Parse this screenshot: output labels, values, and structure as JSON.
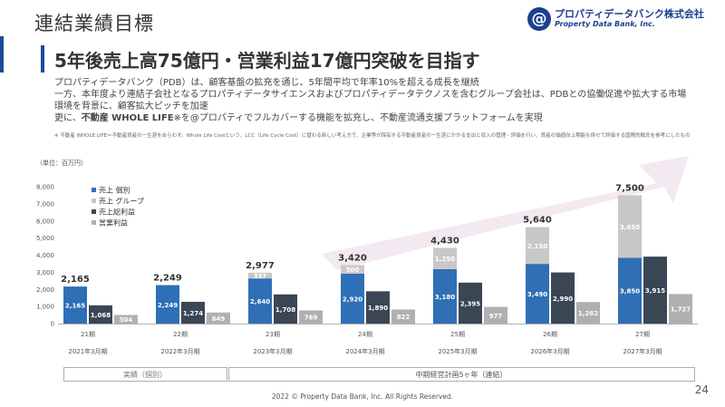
{
  "slide": {
    "title": "連結業績目標",
    "headline": "5年後売上高75億円・営業利益17億円突破を目指す",
    "desc_line1": "プロパティデータバンク（PDB）は、顧客基盤の拡充を通じ、5年間平均で年率10%を超える成長を継続",
    "desc_line2": "一方、本年度より連結子会社となるプロパティデータサイエンスおよびプロパティデータテクノスを含むグループ会社は、PDBとの協働促進や拡大する市場環境を背景に、顧客拡大ピッチを加速",
    "desc_line3_a": "更に、",
    "desc_line3_bold": "不動産 WHOLE LIFE",
    "desc_line3_b": "※を@プロパティでフルカバーする機能を拡充し、不動産流通支援プラットフォームを実現",
    "footnote": "※ 不動産 WHOLE LIFE＝不動産資産の一生涯をあらわす。Whole Life Costという、LCC（Life Cycle Cost）に替わる新しい考え方で、企業等が保有する不動産資産の一生涯にかかる支出と収入の管理・評価を行い、資産の価値向上期能も併せて評価する国際的概念を参考にしたもの",
    "unit": "（単位：百万円）",
    "copyright": "2022 © Property Data Bank, Inc. All Rights Reserved.",
    "page_number": "24"
  },
  "logo": {
    "mark": "@",
    "name_ja": "プロパティデータバンク株式会社",
    "name_en": "Property Data Bank, Inc."
  },
  "chart_data": {
    "type": "bar",
    "categories": [
      "21期",
      "22期",
      "23期",
      "24期",
      "25期",
      "26期",
      "27期"
    ],
    "subcategories": [
      "2021年3月期",
      "2022年3月期",
      "2023年3月期",
      "2024年3月期",
      "2025年3月期",
      "2026年3月期",
      "2027年3月期"
    ],
    "series": [
      {
        "name": "売上 個別",
        "values": [
          2165,
          2249,
          2640,
          2920,
          3180,
          3490,
          3850
        ],
        "color": "#2f6fb5"
      },
      {
        "name": "売上 グループ",
        "values": [
          0,
          0,
          337,
          500,
          1250,
          2150,
          3650
        ],
        "color": "#c8c8c8"
      },
      {
        "name": "売上総利益",
        "values": [
          1068,
          1274,
          1708,
          1890,
          2395,
          2990,
          3915
        ],
        "color": "#3b4654"
      },
      {
        "name": "営業利益",
        "values": [
          504,
          649,
          769,
          822,
          977,
          1262,
          1727
        ],
        "color": "#b0b0b0"
      }
    ],
    "totals": [
      "2,165",
      "2,249",
      "2,977",
      "3,420",
      "4,430",
      "5,640",
      "7,500"
    ],
    "labels": {
      "individual": [
        "2,165",
        "2,249",
        "2,640",
        "2,920",
        "3,180",
        "3,490",
        "3,850"
      ],
      "group": [
        "",
        "",
        "337",
        "500",
        "1,250",
        "2,150",
        "3,650"
      ],
      "gross": [
        "1,068",
        "1,274",
        "1,708",
        "1,890",
        "2,395",
        "2,990",
        "3,915"
      ],
      "operating": [
        "504",
        "649",
        "769",
        "822",
        "977",
        "1,262",
        "1,727"
      ]
    },
    "yticks": [
      "0",
      "1,000",
      "2,000",
      "3,000",
      "4,000",
      "5,000",
      "6,000",
      "7,000",
      "8,000"
    ],
    "ylim": [
      0,
      8000
    ],
    "legend_position": "top-left",
    "grid": false,
    "periods": {
      "actual": "実績（個別）",
      "plan": "中期経営計画5ヶ年（連結）"
    }
  }
}
